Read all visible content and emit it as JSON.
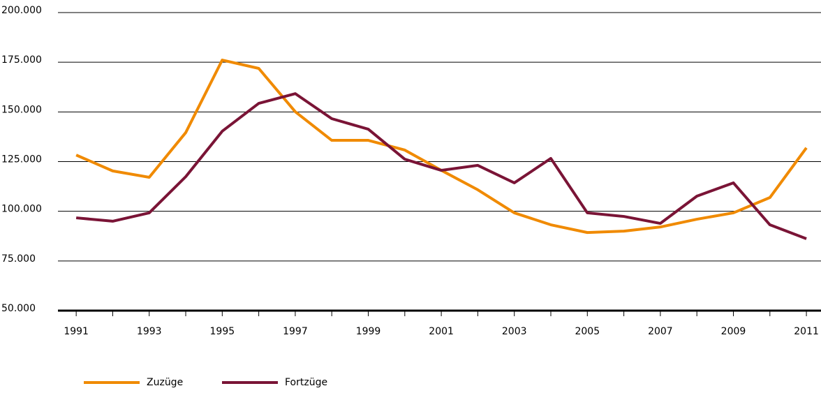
{
  "chart_data": {
    "type": "line",
    "x": [
      1991,
      1992,
      1993,
      1994,
      1995,
      1996,
      1997,
      1998,
      1999,
      2000,
      2001,
      2002,
      2003,
      2004,
      2005,
      2006,
      2007,
      2008,
      2009,
      2010,
      2011
    ],
    "series": [
      {
        "name": "Zuzüge",
        "color": "#f08a00",
        "values": [
          128300,
          120300,
          117100,
          139600,
          176100,
          171900,
          150100,
          135700,
          135700,
          130800,
          120600,
          110800,
          99200,
          93200,
          89300,
          90000,
          92100,
          96000,
          99200,
          106900,
          131900
        ]
      },
      {
        "name": "Fortzüge",
        "color": "#7a1436",
        "values": [
          96700,
          95000,
          99200,
          117400,
          140300,
          154300,
          159200,
          146600,
          141300,
          126200,
          120600,
          123100,
          114300,
          126600,
          99200,
          97400,
          93900,
          107600,
          114300,
          93200,
          86200
        ]
      }
    ],
    "xlim": [
      1990.5,
      2011.4
    ],
    "xticks": [
      1991,
      1993,
      1995,
      1997,
      1999,
      2001,
      2003,
      2005,
      2007,
      2009,
      2011
    ],
    "ylim": [
      50000,
      200000
    ],
    "yticks": [
      {
        "value": 50000,
        "label": "50.000"
      },
      {
        "value": 75000,
        "label": "75.000"
      },
      {
        "value": 100000,
        "label": "100.000"
      },
      {
        "value": 125000,
        "label": "125.000"
      },
      {
        "value": 150000,
        "label": "150.000"
      },
      {
        "value": 175000,
        "label": "175.000"
      },
      {
        "value": 200000,
        "label": "200.000"
      }
    ],
    "grid": true,
    "legend": "bottom"
  }
}
